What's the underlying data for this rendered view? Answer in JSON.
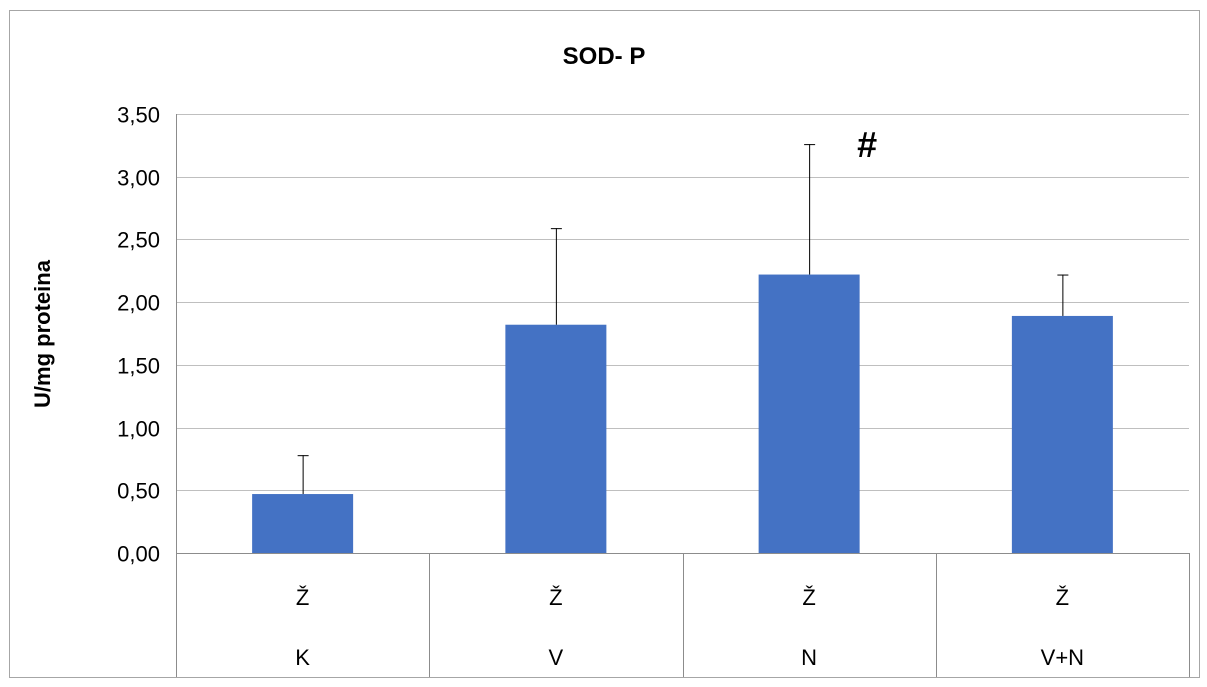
{
  "chart_data": {
    "type": "bar",
    "title": "SOD- P",
    "xlabel": "",
    "ylabel": "U/mg proteina",
    "ylim": [
      0,
      3.5
    ],
    "y_ticks": [
      "0,00",
      "0,50",
      "1,00",
      "1,50",
      "2,00",
      "2,50",
      "3,00",
      "3,50"
    ],
    "y_tick_values": [
      0,
      0.5,
      1.0,
      1.5,
      2.0,
      2.5,
      3.0,
      3.5
    ],
    "grid": true,
    "legend": "none",
    "categories": [
      {
        "sub": "Ž",
        "group": "K"
      },
      {
        "sub": "Ž",
        "group": "V"
      },
      {
        "sub": "Ž",
        "group": "N"
      },
      {
        "sub": "Ž",
        "group": "V+N"
      }
    ],
    "values": [
      0.47,
      1.82,
      2.22,
      1.89
    ],
    "error_plus": [
      0.31,
      0.77,
      1.04,
      0.33
    ],
    "annotations": [
      {
        "text": "#",
        "category_index": 2
      }
    ],
    "colors": {
      "bar": "#4472c4",
      "grid": "#bfbfbf",
      "axis": "#8c8c8c",
      "text": "#000000",
      "border": "#a6a6a6"
    }
  }
}
